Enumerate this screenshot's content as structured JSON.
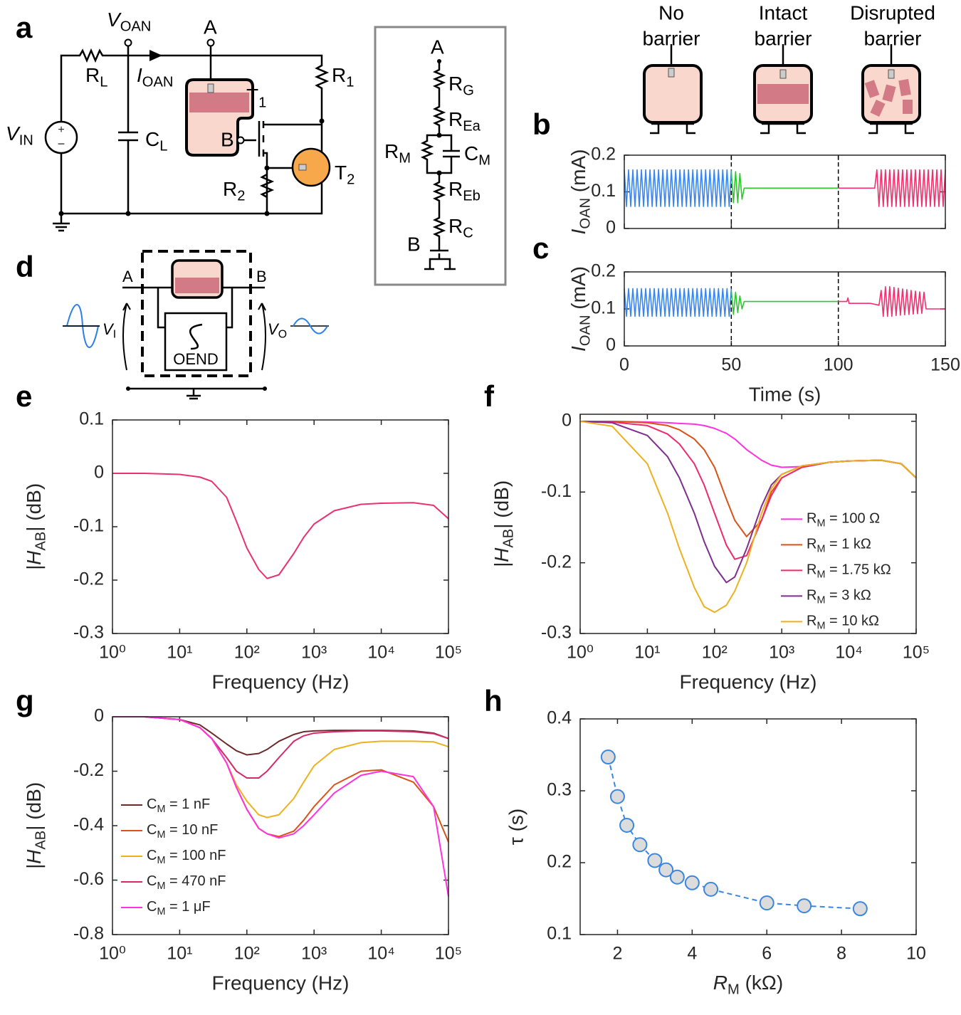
{
  "panels": {
    "a": "a",
    "b": "b",
    "c": "c",
    "d": "d",
    "e": "e",
    "f": "f",
    "g": "g",
    "h": "h"
  },
  "circuit": {
    "v_oan": [
      "V",
      "OAN"
    ],
    "a": "A",
    "r_l": [
      "R",
      "L"
    ],
    "i_oan": [
      "I",
      "OAN"
    ],
    "r_1": [
      "R",
      "1"
    ],
    "t_1": [
      "T",
      "1"
    ],
    "b": "B",
    "v_in": [
      "V",
      "IN"
    ],
    "c_l": [
      "C",
      "L"
    ],
    "r_2": [
      "R",
      "2"
    ],
    "t_2": [
      "T",
      "2"
    ]
  },
  "inset": {
    "a": "A",
    "r_g": [
      "R",
      "G"
    ],
    "r_ea": [
      "R",
      "Ea"
    ],
    "r_m": [
      "R",
      "M"
    ],
    "c_m": [
      "C",
      "M"
    ],
    "r_eb": [
      "R",
      "Eb"
    ],
    "r_c": [
      "R",
      "C"
    ],
    "b": "B"
  },
  "barriers": [
    [
      "No",
      "barrier"
    ],
    [
      "Intact",
      "barrier"
    ],
    [
      "Disrupted",
      "barrier"
    ]
  ],
  "setup_d": {
    "a": "A",
    "b": "B",
    "v_i": [
      "V",
      "I"
    ],
    "v_o": [
      "V",
      "O"
    ],
    "oend": "OEND"
  },
  "chart_data": [
    {
      "type": "line",
      "xlim": [
        0,
        150
      ],
      "ylim": [
        0,
        0.2
      ],
      "xticks": [
        0,
        50,
        100,
        150
      ],
      "xticklabels": false,
      "yticks": [
        0,
        0.1,
        0.2
      ],
      "ylabel": [
        "I",
        "OAN",
        " (mA)"
      ],
      "vlines": [
        50,
        100
      ],
      "series": [
        {
          "color": "#3a86f0",
          "x": [
            0,
            1,
            2,
            3,
            4,
            5,
            6,
            7,
            8,
            9,
            10,
            11,
            12,
            13,
            14,
            15,
            16,
            17,
            18,
            19,
            20,
            21,
            22,
            23,
            24,
            25,
            26,
            27,
            28,
            29,
            30,
            31,
            32,
            33,
            34,
            35,
            36,
            37,
            38,
            39,
            40,
            41,
            42,
            43,
            44,
            45,
            46,
            47,
            48,
            49,
            50
          ],
          "values": [
            0.16,
            0.06,
            0.16,
            0.06,
            0.16,
            0.06,
            0.16,
            0.06,
            0.16,
            0.06,
            0.16,
            0.06,
            0.16,
            0.06,
            0.16,
            0.06,
            0.16,
            0.06,
            0.16,
            0.06,
            0.16,
            0.06,
            0.16,
            0.06,
            0.16,
            0.06,
            0.16,
            0.06,
            0.16,
            0.06,
            0.16,
            0.06,
            0.16,
            0.06,
            0.16,
            0.06,
            0.16,
            0.06,
            0.16,
            0.06,
            0.16,
            0.06,
            0.16,
            0.06,
            0.16,
            0.06,
            0.16,
            0.06,
            0.16,
            0.06,
            0.16
          ]
        },
        {
          "color": "#2ec72e",
          "x": [
            50,
            51,
            52,
            53,
            54,
            55,
            56,
            60,
            100
          ],
          "values": [
            0.155,
            0.07,
            0.155,
            0.07,
            0.15,
            0.08,
            0.11,
            0.11,
            0.11
          ]
        },
        {
          "color": "#f0306f",
          "x": [
            100,
            117,
            118,
            119,
            120,
            121,
            122,
            123,
            124,
            125,
            126,
            127,
            128,
            129,
            130,
            131,
            132,
            133,
            134,
            135,
            136,
            137,
            138,
            139,
            140,
            141,
            142,
            143,
            144,
            145,
            146,
            147,
            148,
            149,
            150
          ],
          "values": [
            0.11,
            0.11,
            0.16,
            0.06,
            0.16,
            0.06,
            0.16,
            0.06,
            0.16,
            0.06,
            0.16,
            0.06,
            0.16,
            0.06,
            0.16,
            0.06,
            0.16,
            0.06,
            0.16,
            0.06,
            0.16,
            0.06,
            0.16,
            0.06,
            0.16,
            0.06,
            0.16,
            0.06,
            0.16,
            0.06,
            0.16,
            0.06,
            0.16,
            0.06,
            0.16
          ]
        }
      ]
    },
    {
      "type": "line",
      "xlim": [
        0,
        150
      ],
      "ylim": [
        0,
        0.2
      ],
      "xticks": [
        0,
        50,
        100,
        150
      ],
      "yticks": [
        0,
        0.1,
        0.2
      ],
      "xlabel": "Time (s)",
      "ylabel": [
        "I",
        "OAN",
        " (mA)"
      ],
      "vlines": [
        50,
        100
      ],
      "series": [
        {
          "color": "#3a86f0",
          "x": [
            0,
            1,
            2,
            3,
            4,
            5,
            6,
            7,
            8,
            9,
            10,
            11,
            12,
            13,
            14,
            15,
            16,
            17,
            18,
            19,
            20,
            21,
            22,
            23,
            24,
            25,
            26,
            27,
            28,
            29,
            30,
            31,
            32,
            33,
            34,
            35,
            36,
            37,
            38,
            39,
            40,
            41,
            42,
            43,
            44,
            45,
            46,
            47,
            48,
            49,
            50
          ],
          "values": [
            0.155,
            0.08,
            0.155,
            0.08,
            0.155,
            0.08,
            0.155,
            0.08,
            0.155,
            0.08,
            0.155,
            0.08,
            0.155,
            0.08,
            0.155,
            0.08,
            0.155,
            0.08,
            0.155,
            0.08,
            0.155,
            0.08,
            0.155,
            0.08,
            0.155,
            0.08,
            0.155,
            0.08,
            0.155,
            0.08,
            0.155,
            0.08,
            0.155,
            0.08,
            0.155,
            0.08,
            0.155,
            0.08,
            0.155,
            0.08,
            0.155,
            0.08,
            0.155,
            0.08,
            0.155,
            0.08,
            0.155,
            0.08,
            0.155,
            0.08,
            0.155
          ]
        },
        {
          "color": "#2ec72e",
          "x": [
            50,
            51,
            52,
            53,
            54,
            55,
            56,
            58,
            100
          ],
          "values": [
            0.15,
            0.085,
            0.145,
            0.09,
            0.135,
            0.1,
            0.12,
            0.12,
            0.12
          ]
        },
        {
          "color": "#f0306f",
          "x": [
            100,
            104,
            104.5,
            105,
            115,
            119,
            120,
            121,
            122,
            123,
            124,
            125,
            126,
            127,
            128,
            129,
            130,
            131,
            132,
            133,
            134,
            135,
            136,
            137,
            138,
            139,
            140,
            141,
            150
          ],
          "values": [
            0.12,
            0.12,
            0.13,
            0.115,
            0.115,
            0.11,
            0.15,
            0.08,
            0.16,
            0.08,
            0.16,
            0.08,
            0.158,
            0.082,
            0.156,
            0.083,
            0.154,
            0.084,
            0.152,
            0.085,
            0.15,
            0.086,
            0.148,
            0.087,
            0.146,
            0.088,
            0.145,
            0.1,
            0.1
          ]
        }
      ]
    },
    {
      "type": "line",
      "xscale": "log",
      "xlim": [
        1,
        100000
      ],
      "ylim": [
        -0.3,
        0.1
      ],
      "xticks": [
        {
          "value": 1,
          "label": "10⁰"
        },
        {
          "value": 10,
          "label": "10¹"
        },
        {
          "value": 100,
          "label": "10²"
        },
        {
          "value": 1000,
          "label": "10³"
        },
        {
          "value": 10000,
          "label": "10⁴"
        },
        {
          "value": 100000,
          "label": "10⁵"
        }
      ],
      "yticks": [
        -0.3,
        -0.2,
        -0.1,
        0,
        0.1
      ],
      "xlabel": "Frequency (Hz)",
      "ylabel": [
        "|H",
        "AB",
        "| (dB)"
      ],
      "x": [
        1,
        3,
        10,
        20,
        30,
        50,
        70,
        100,
        150,
        200,
        300,
        500,
        700,
        1000,
        2000,
        5000,
        10000,
        30000,
        60000,
        100000
      ],
      "series": [
        {
          "color": "#e8336e",
          "values": [
            0,
            0,
            -0.002,
            -0.007,
            -0.015,
            -0.045,
            -0.09,
            -0.14,
            -0.18,
            -0.197,
            -0.19,
            -0.15,
            -0.12,
            -0.095,
            -0.07,
            -0.058,
            -0.056,
            -0.055,
            -0.06,
            -0.085
          ]
        }
      ]
    },
    {
      "type": "line",
      "xscale": "log",
      "xlim": [
        1,
        100000
      ],
      "ylim": [
        -0.3,
        0.01
      ],
      "legend": "right",
      "xticks": [
        {
          "value": 1,
          "label": "10⁰"
        },
        {
          "value": 10,
          "label": "10¹"
        },
        {
          "value": 100,
          "label": "10²"
        },
        {
          "value": 1000,
          "label": "10³"
        },
        {
          "value": 10000,
          "label": "10⁴"
        },
        {
          "value": 100000,
          "label": "10⁵"
        }
      ],
      "yticks": [
        -0.3,
        -0.2,
        -0.1,
        0
      ],
      "xlabel": "Frequency (Hz)",
      "ylabel": [
        "|H",
        "AB",
        "| (dB)"
      ],
      "x": [
        1,
        3,
        10,
        20,
        30,
        50,
        70,
        100,
        150,
        200,
        300,
        500,
        700,
        1000,
        2000,
        5000,
        10000,
        30000,
        60000,
        100000
      ],
      "series": [
        {
          "name": [
            "R",
            "M",
            " = 100 Ω"
          ],
          "color": "#ff33dd",
          "values": [
            0,
            0,
            -0.001,
            -0.002,
            -0.003,
            -0.004,
            -0.006,
            -0.01,
            -0.017,
            -0.025,
            -0.04,
            -0.055,
            -0.062,
            -0.065,
            -0.064,
            -0.058,
            -0.056,
            -0.055,
            -0.06,
            -0.08
          ]
        },
        {
          "name": [
            "R",
            "M",
            " = 1 kΩ"
          ],
          "color": "#d95319",
          "values": [
            0,
            0,
            -0.002,
            -0.006,
            -0.012,
            -0.025,
            -0.04,
            -0.065,
            -0.11,
            -0.14,
            -0.163,
            -0.14,
            -0.1,
            -0.08,
            -0.065,
            -0.058,
            -0.056,
            -0.055,
            -0.06,
            -0.08
          ]
        },
        {
          "name": [
            "R",
            "M",
            " = 1.75 kΩ"
          ],
          "color": "#ec2d6b",
          "values": [
            0,
            -0.001,
            -0.006,
            -0.018,
            -0.032,
            -0.06,
            -0.09,
            -0.13,
            -0.175,
            -0.195,
            -0.19,
            -0.14,
            -0.105,
            -0.08,
            -0.065,
            -0.058,
            -0.056,
            -0.055,
            -0.06,
            -0.08
          ]
        },
        {
          "name": [
            "R",
            "M",
            " = 3 kΩ"
          ],
          "color": "#7e2f8e",
          "values": [
            0,
            -0.002,
            -0.02,
            -0.05,
            -0.08,
            -0.13,
            -0.17,
            -0.205,
            -0.228,
            -0.22,
            -0.18,
            -0.12,
            -0.09,
            -0.075,
            -0.063,
            -0.058,
            -0.056,
            -0.055,
            -0.06,
            -0.08
          ]
        },
        {
          "name": [
            "R",
            "M",
            " = 10 kΩ"
          ],
          "color": "#edb120",
          "values": [
            0,
            -0.007,
            -0.06,
            -0.13,
            -0.18,
            -0.235,
            -0.262,
            -0.27,
            -0.26,
            -0.24,
            -0.2,
            -0.13,
            -0.095,
            -0.075,
            -0.063,
            -0.058,
            -0.056,
            -0.055,
            -0.06,
            -0.08
          ]
        }
      ]
    },
    {
      "type": "line",
      "xscale": "log",
      "xlim": [
        1,
        100000
      ],
      "ylim": [
        -0.8,
        0
      ],
      "legend": "lower left",
      "xticks": [
        {
          "value": 1,
          "label": "10⁰"
        },
        {
          "value": 10,
          "label": "10¹"
        },
        {
          "value": 100,
          "label": "10²"
        },
        {
          "value": 1000,
          "label": "10³"
        },
        {
          "value": 10000,
          "label": "10⁴"
        },
        {
          "value": 100000,
          "label": "10⁵"
        }
      ],
      "yticks": [
        -0.8,
        -0.6,
        -0.4,
        -0.2,
        0
      ],
      "xlabel": "Frequency (Hz)",
      "ylabel": [
        "|H",
        "AB",
        "| (dB)"
      ],
      "x": [
        1,
        3,
        10,
        20,
        30,
        50,
        70,
        100,
        150,
        200,
        300,
        500,
        700,
        1000,
        2000,
        5000,
        10000,
        30000,
        60000,
        100000
      ],
      "series": [
        {
          "name": [
            "C",
            "M",
            " = 1 nF"
          ],
          "color": "#6b2a2a",
          "values": [
            0,
            0,
            -0.01,
            -0.03,
            -0.06,
            -0.1,
            -0.125,
            -0.14,
            -0.135,
            -0.12,
            -0.09,
            -0.065,
            -0.055,
            -0.052,
            -0.05,
            -0.05,
            -0.05,
            -0.052,
            -0.06,
            -0.08
          ]
        },
        {
          "name": [
            "C",
            "M",
            " = 10 nF"
          ],
          "color": "#d95319",
          "values": [
            0,
            0,
            -0.01,
            -0.04,
            -0.08,
            -0.17,
            -0.26,
            -0.34,
            -0.41,
            -0.43,
            -0.44,
            -0.42,
            -0.38,
            -0.33,
            -0.25,
            -0.2,
            -0.195,
            -0.24,
            -0.33,
            -0.46
          ]
        },
        {
          "name": [
            "C",
            "M",
            " = 100 nF"
          ],
          "color": "#edb120",
          "values": [
            0,
            0,
            -0.01,
            -0.04,
            -0.08,
            -0.17,
            -0.25,
            -0.31,
            -0.36,
            -0.37,
            -0.36,
            -0.3,
            -0.24,
            -0.18,
            -0.12,
            -0.095,
            -0.09,
            -0.09,
            -0.092,
            -0.11
          ]
        },
        {
          "name": [
            "C",
            "M",
            " = 470 nF"
          ],
          "color": "#d42a6a",
          "values": [
            0,
            0,
            -0.01,
            -0.04,
            -0.08,
            -0.15,
            -0.2,
            -0.225,
            -0.225,
            -0.2,
            -0.15,
            -0.09,
            -0.07,
            -0.06,
            -0.055,
            -0.052,
            -0.052,
            -0.055,
            -0.062,
            -0.08
          ]
        },
        {
          "name": [
            "C",
            "M",
            " = 1 μF"
          ],
          "color": "#ff33e0",
          "values": [
            0,
            0,
            -0.01,
            -0.04,
            -0.08,
            -0.17,
            -0.26,
            -0.34,
            -0.41,
            -0.43,
            -0.445,
            -0.43,
            -0.4,
            -0.36,
            -0.28,
            -0.215,
            -0.2,
            -0.22,
            -0.33,
            -0.66
          ]
        }
      ]
    },
    {
      "type": "scatter",
      "xlim": [
        1,
        10
      ],
      "ylim": [
        0.1,
        0.4
      ],
      "xticks": [
        2,
        4,
        6,
        8,
        10
      ],
      "yticks": [
        0.1,
        0.2,
        0.3,
        0.4
      ],
      "xlabel": [
        "R",
        "M",
        " (kΩ)"
      ],
      "ylabel": "τ (s)",
      "series": [
        {
          "color": "#3a86e0",
          "x": [
            1.75,
            2,
            2.25,
            2.6,
            3,
            3.3,
            3.6,
            4,
            4.5,
            6,
            7,
            8.5
          ],
          "values": [
            0.347,
            0.292,
            0.252,
            0.225,
            0.203,
            0.19,
            0.18,
            0.172,
            0.163,
            0.144,
            0.14,
            0.136
          ]
        }
      ]
    }
  ]
}
